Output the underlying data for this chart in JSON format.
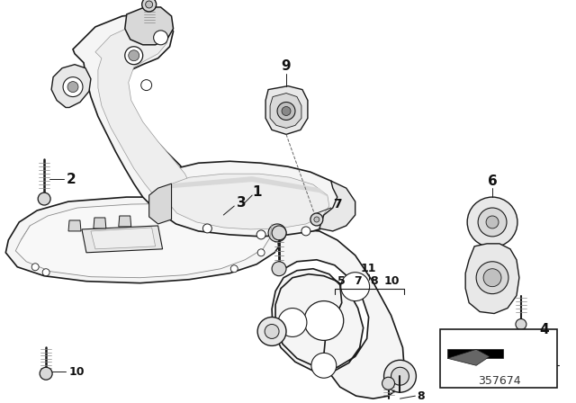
{
  "bg_color": "#ffffff",
  "diagram_number": "357674",
  "line_color": "#333333",
  "dark": "#1a1a1a",
  "light_fill": "#f5f5f5",
  "mid_fill": "#e8e8e8",
  "shade_fill": "#d8d8d8",
  "dark_fill": "#c0c0c0"
}
